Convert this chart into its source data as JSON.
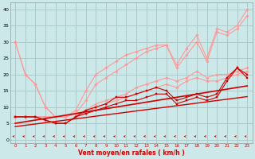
{
  "x": [
    0,
    1,
    2,
    3,
    4,
    5,
    6,
    7,
    8,
    9,
    10,
    11,
    12,
    13,
    14,
    15,
    16,
    17,
    18,
    19,
    20,
    21,
    22,
    23
  ],
  "series": {
    "light1": [
      30,
      20,
      17,
      10,
      7,
      7,
      9,
      15,
      20,
      22,
      24,
      26,
      27,
      28,
      29,
      29,
      23,
      28,
      32,
      25,
      34,
      33,
      35,
      40
    ],
    "light2": [
      30,
      20,
      17,
      10,
      7,
      7,
      8,
      12,
      17,
      19,
      21,
      23,
      25,
      27,
      28,
      29,
      22,
      26,
      30,
      24,
      33,
      32,
      34,
      38
    ],
    "light3": [
      7,
      7,
      7,
      7,
      7,
      7,
      8,
      9,
      11,
      12,
      13,
      14,
      16,
      17,
      18,
      19,
      18,
      19,
      21,
      19,
      20,
      20,
      21,
      22
    ],
    "light4": [
      7,
      7,
      7,
      7,
      7,
      7,
      8,
      8,
      10,
      11,
      12,
      13,
      14,
      15,
      16,
      17,
      16,
      18,
      19,
      18,
      18,
      19,
      20,
      21
    ],
    "dark1": [
      7,
      7,
      7,
      6,
      5,
      5,
      7,
      9,
      10,
      11,
      13,
      13,
      14,
      15,
      16,
      15,
      12,
      13,
      14,
      13,
      14,
      19,
      22,
      20
    ],
    "dark2": [
      7,
      7,
      7,
      6,
      5,
      5,
      7,
      8,
      9,
      10,
      11,
      12,
      12,
      13,
      14,
      14,
      11,
      12,
      13,
      12,
      13,
      18,
      22,
      19
    ],
    "trend1": [
      5,
      5.5,
      6,
      6.5,
      7,
      7.5,
      8,
      8.5,
      9,
      9.5,
      10,
      10.5,
      11,
      11.5,
      12,
      12.5,
      13,
      13.5,
      14,
      14.5,
      15,
      15.5,
      16,
      16.5
    ],
    "trend2": [
      4,
      4.4,
      4.8,
      5.2,
      5.6,
      6,
      6.4,
      6.8,
      7.2,
      7.6,
      8,
      8.4,
      8.8,
      9.2,
      9.6,
      10,
      10.4,
      10.8,
      11.2,
      11.6,
      12,
      12.4,
      12.8,
      13.2
    ]
  },
  "wind_y": 1.0,
  "bg": "#cce8e8",
  "grid_col": "#aacccc",
  "dark_red": "#cc0000",
  "light_red": "#ff9999",
  "xlabel": "Vent moyen/en rafales ( km/h )",
  "xlim": [
    -0.5,
    23.5
  ],
  "ylim": [
    -1,
    42
  ],
  "yticks": [
    0,
    5,
    10,
    15,
    20,
    25,
    30,
    35,
    40
  ]
}
